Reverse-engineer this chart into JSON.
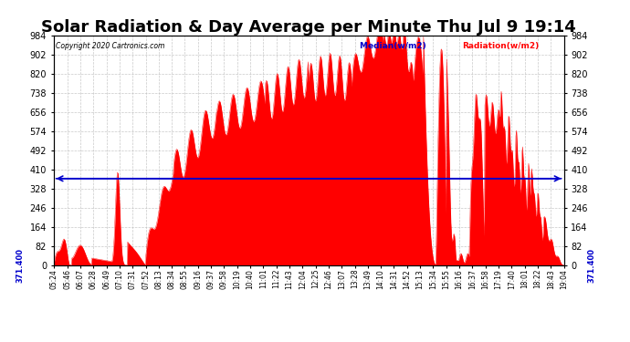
{
  "title": "Solar Radiation & Day Average per Minute Thu Jul 9 19:14",
  "copyright": "Copyright 2020 Cartronics.com",
  "legend_median": "Median(w/m2)",
  "legend_radiation": "Radiation(w/m2)",
  "median_value": 371.4,
  "y_min": 0.0,
  "y_max": 984.0,
  "y_ticks": [
    0.0,
    82.0,
    164.0,
    246.0,
    328.0,
    410.0,
    492.0,
    574.0,
    656.0,
    738.0,
    820.0,
    902.0,
    984.0
  ],
  "background_color": "#ffffff",
  "fill_color": "#ff0000",
  "line_color": "#ff0000",
  "median_color": "#0000cc",
  "grid_color": "#bbbbbb",
  "title_fontsize": 13,
  "x_labels": [
    "05:24",
    "05:46",
    "06:07",
    "06:28",
    "06:49",
    "07:10",
    "07:31",
    "07:52",
    "08:13",
    "08:34",
    "08:55",
    "09:16",
    "09:37",
    "09:58",
    "10:19",
    "10:40",
    "11:01",
    "11:22",
    "11:43",
    "12:04",
    "12:25",
    "12:46",
    "13:07",
    "13:28",
    "13:49",
    "14:10",
    "14:31",
    "14:52",
    "15:13",
    "15:34",
    "15:55",
    "16:16",
    "16:37",
    "16:58",
    "17:19",
    "17:40",
    "18:01",
    "18:22",
    "18:43",
    "19:04"
  ],
  "left_ytick_label": "371.400",
  "right_ytick_label": "371.400"
}
